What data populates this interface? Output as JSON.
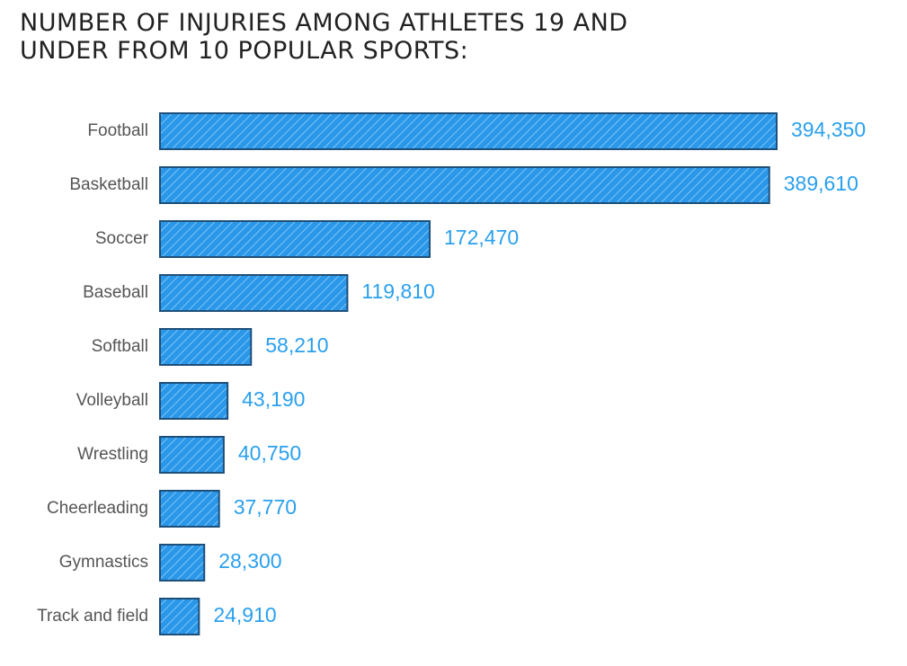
{
  "title": {
    "line1": "NUMBER OF INJURIES AMONG ATHLETES 19 AND",
    "line2": "UNDER FROM 10 POPULAR SPORTS:"
  },
  "colors": {
    "bar_fill": "#2b97e8",
    "bar_stripe": "#8fd0fb",
    "bar_border": "#1d4f7a",
    "value_text": "#2aa0ee",
    "category_text": "#555555"
  },
  "chart_data": {
    "type": "bar",
    "orientation": "horizontal",
    "title": "NUMBER OF INJURIES AMONG ATHLETES 19 AND UNDER FROM 10 POPULAR SPORTS:",
    "xlabel": "",
    "ylabel": "",
    "categories": [
      "Football",
      "Basketball",
      "Soccer",
      "Baseball",
      "Softball",
      "Volleyball",
      "Wrestling",
      "Cheerleading",
      "Gymnastics",
      "Track and field"
    ],
    "values": [
      394350,
      389610,
      172470,
      119810,
      58210,
      43190,
      40750,
      37770,
      28300,
      24910
    ],
    "value_labels": [
      "394,350",
      "389,610",
      "172,470",
      "119,810",
      "58,210",
      "43,190",
      "40,750",
      "37,770",
      "28,300",
      "24,910"
    ],
    "xlim": [
      0,
      394350
    ],
    "grid": false,
    "legend": "none"
  }
}
